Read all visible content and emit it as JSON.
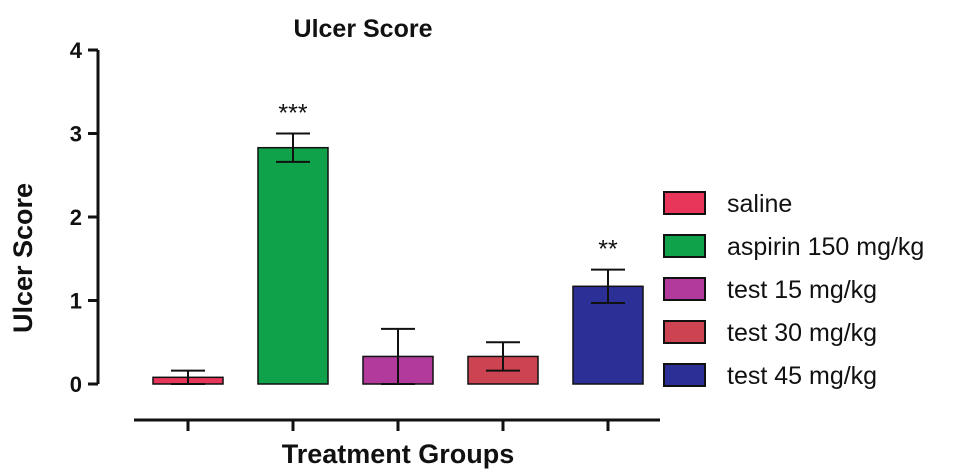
{
  "chart_data": {
    "type": "bar",
    "title": "Ulcer Score",
    "xlabel": "Treatment Groups",
    "ylabel": "Ulcer Score",
    "ylim": [
      0,
      4
    ],
    "yticks": [
      "0",
      "1",
      "2",
      "3",
      "4"
    ],
    "categories": [
      "saline",
      "aspirin 150 mg/kg",
      "test 15 mg/kg",
      "test 30 mg/kg",
      "test 45 mg/kg"
    ],
    "values": [
      0.08,
      2.83,
      0.33,
      0.33,
      1.17
    ],
    "errors": [
      0.08,
      0.17,
      0.33,
      0.17,
      0.2
    ],
    "significance": [
      "",
      "***",
      "",
      "",
      "**"
    ],
    "colors": [
      "#e8365a",
      "#10a24a",
      "#b23a9c",
      "#cc4452",
      "#2c2f96"
    ],
    "legend_position": "right",
    "grid": false
  }
}
